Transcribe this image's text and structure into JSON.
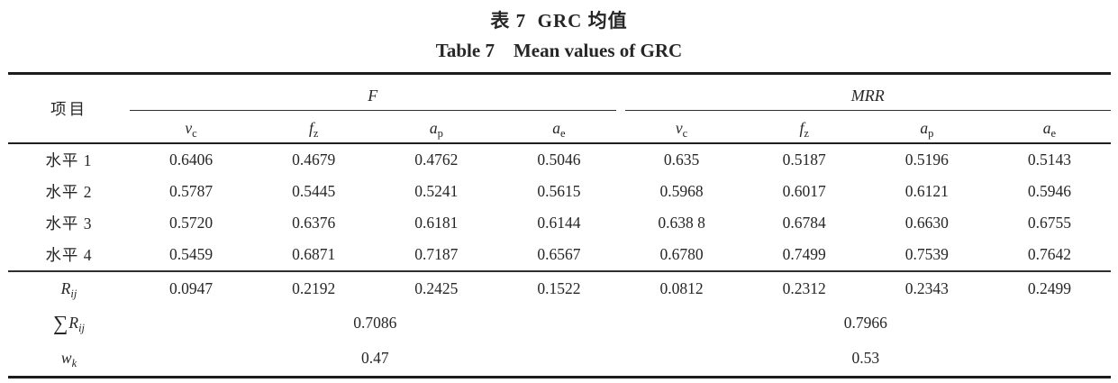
{
  "page": {
    "title_zh": "表 7  GRC 均值",
    "title_en": "Table 7    Mean values of GRC"
  },
  "table": {
    "item_header": "项目",
    "groups": [
      {
        "label": "F"
      },
      {
        "label": "MRR"
      }
    ],
    "subcolumns": [
      {
        "base": "v",
        "sub": "c"
      },
      {
        "base": "f",
        "sub": "z"
      },
      {
        "base": "a",
        "sub": "p"
      },
      {
        "base": "a",
        "sub": "e"
      },
      {
        "base": "v",
        "sub": "c"
      },
      {
        "base": "f",
        "sub": "z"
      },
      {
        "base": "a",
        "sub": "p"
      },
      {
        "base": "a",
        "sub": "e"
      }
    ],
    "level_rows": [
      {
        "label": "水平 1",
        "values": [
          "0.6406",
          "0.4679",
          "0.4762",
          "0.5046",
          "0.635",
          "0.5187",
          "0.5196",
          "0.5143"
        ]
      },
      {
        "label": "水平 2",
        "values": [
          "0.5787",
          "0.5445",
          "0.5241",
          "0.5615",
          "0.5968",
          "0.6017",
          "0.6121",
          "0.5946"
        ]
      },
      {
        "label": "水平 3",
        "values": [
          "0.5720",
          "0.6376",
          "0.6181",
          "0.6144",
          "0.638 8",
          "0.6784",
          "0.6630",
          "0.6755"
        ]
      },
      {
        "label": "水平 4",
        "values": [
          "0.5459",
          "0.6871",
          "0.7187",
          "0.6567",
          "0.6780",
          "0.7499",
          "0.7539",
          "0.7642"
        ]
      }
    ],
    "range_row": {
      "label_base": "R",
      "label_sub": "ij",
      "values": [
        "0.0947",
        "0.2192",
        "0.2425",
        "0.1522",
        "0.0812",
        "0.2312",
        "0.2343",
        "0.2499"
      ]
    },
    "sum_row": {
      "label_prefix": "∑",
      "label_base": "R",
      "label_sub": "ij",
      "f_value": "0.7086",
      "mrr_value": "0.7966"
    },
    "weight_row": {
      "label_base": "w",
      "label_sub": "k",
      "f_value": "0.47",
      "mrr_value": "0.53"
    }
  }
}
